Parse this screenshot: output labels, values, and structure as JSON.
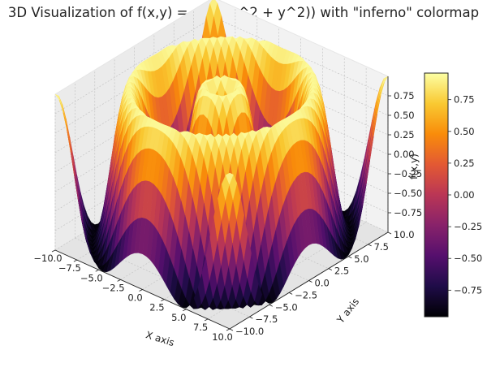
{
  "chart_data": {
    "type": "surface3d",
    "title": "3D Visualization of f(x,y) = sin(√(x^2 + y^2)) with \"inferno\" colormap",
    "function": "sin(sqrt(x^2 + y^2))",
    "colormap": "inferno",
    "xlabel": "X axis",
    "ylabel": "Y axis",
    "zlabel": "f(x,y)",
    "xlim": [
      -10,
      10
    ],
    "ylim": [
      -10,
      10
    ],
    "zlim": [
      -1,
      1
    ],
    "x_ticks": [
      "−10.0",
      "−7.5",
      "−5.0",
      "−2.5",
      "0.0",
      "2.5",
      "5.0",
      "7.5",
      "10.0"
    ],
    "y_ticks": [
      "−10.0",
      "−7.5",
      "−5.0",
      "−2.5",
      "0.0",
      "2.5",
      "5.0",
      "7.5",
      "10.0"
    ],
    "z_ticks": [
      "−0.75",
      "−0.50",
      "−0.25",
      "0.00",
      "0.25",
      "0.50",
      "0.75"
    ],
    "colorbar_ticks": [
      "−0.75",
      "−0.50",
      "−0.25",
      "0.00",
      "0.25",
      "0.50",
      "0.75"
    ],
    "grid": true
  }
}
